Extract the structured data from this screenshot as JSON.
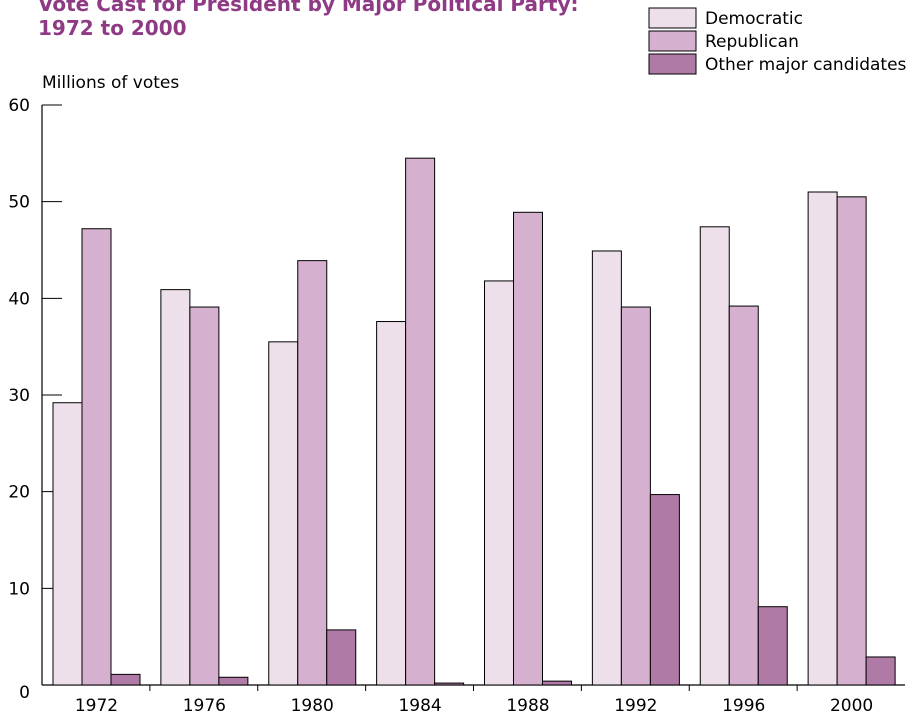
{
  "chart_data": {
    "type": "bar",
    "title_line1": "Vote Cast for President by Major Political Party:",
    "title_line2": "1972 to 2000",
    "ylabel": "Millions of votes",
    "xlabel": "",
    "ylim": [
      0,
      60
    ],
    "yticks": [
      0,
      10,
      20,
      30,
      40,
      50,
      60
    ],
    "categories": [
      "1972",
      "1976",
      "1980",
      "1984",
      "1988",
      "1992",
      "1996",
      "2000"
    ],
    "series": [
      {
        "name": "Democratic",
        "color": "#ede0ea",
        "values": [
          29.2,
          40.9,
          35.5,
          37.6,
          41.8,
          44.9,
          47.4,
          51.0
        ]
      },
      {
        "name": "Republican",
        "color": "#d5b1cf",
        "values": [
          47.2,
          39.1,
          43.9,
          54.5,
          48.9,
          39.1,
          39.2,
          50.5
        ]
      },
      {
        "name": "Other major candidates",
        "color": "#b07aa6",
        "values": [
          1.1,
          0.8,
          5.7,
          0.2,
          0.4,
          19.7,
          8.1,
          2.9
        ]
      }
    ],
    "legend_position": "top-right",
    "title_color": "#8e3a84",
    "grid": false
  }
}
